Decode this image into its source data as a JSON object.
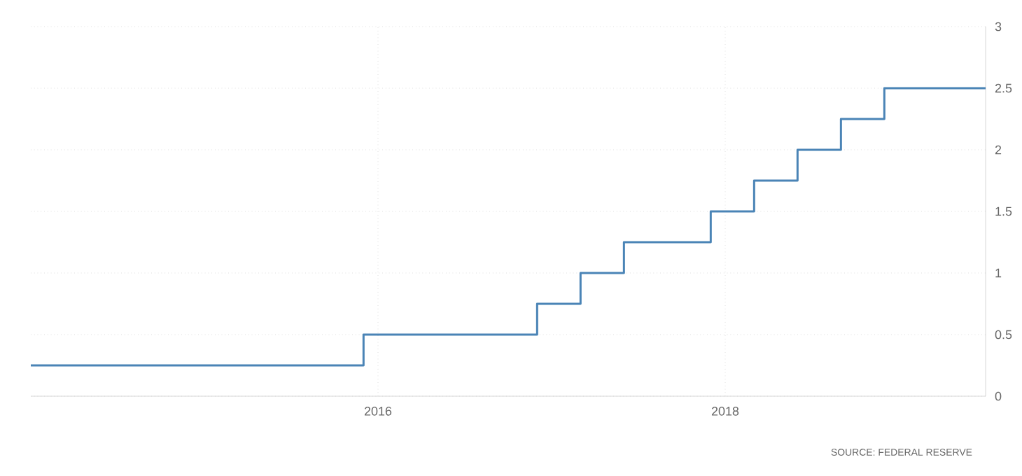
{
  "chart_data": {
    "type": "step",
    "x": [
      "2014-01",
      "2015-12",
      "2016-12",
      "2017-03",
      "2017-06",
      "2017-12",
      "2018-03",
      "2018-06",
      "2018-09",
      "2018-12",
      "2019-07"
    ],
    "values": [
      0.25,
      0.5,
      0.75,
      1.0,
      1.25,
      1.5,
      1.75,
      2.0,
      2.25,
      2.5,
      2.5
    ],
    "color": "#4a84b6",
    "xlim": [
      "2014-01",
      "2019-07"
    ],
    "xticks": [
      "2016",
      "2018"
    ],
    "ylim": [
      0,
      3
    ],
    "yticks": [
      0,
      0.5,
      1,
      1.5,
      2,
      2.5,
      3
    ],
    "grid": true,
    "annotations": [
      "SOURCE: FEDERAL RESERVE"
    ]
  }
}
